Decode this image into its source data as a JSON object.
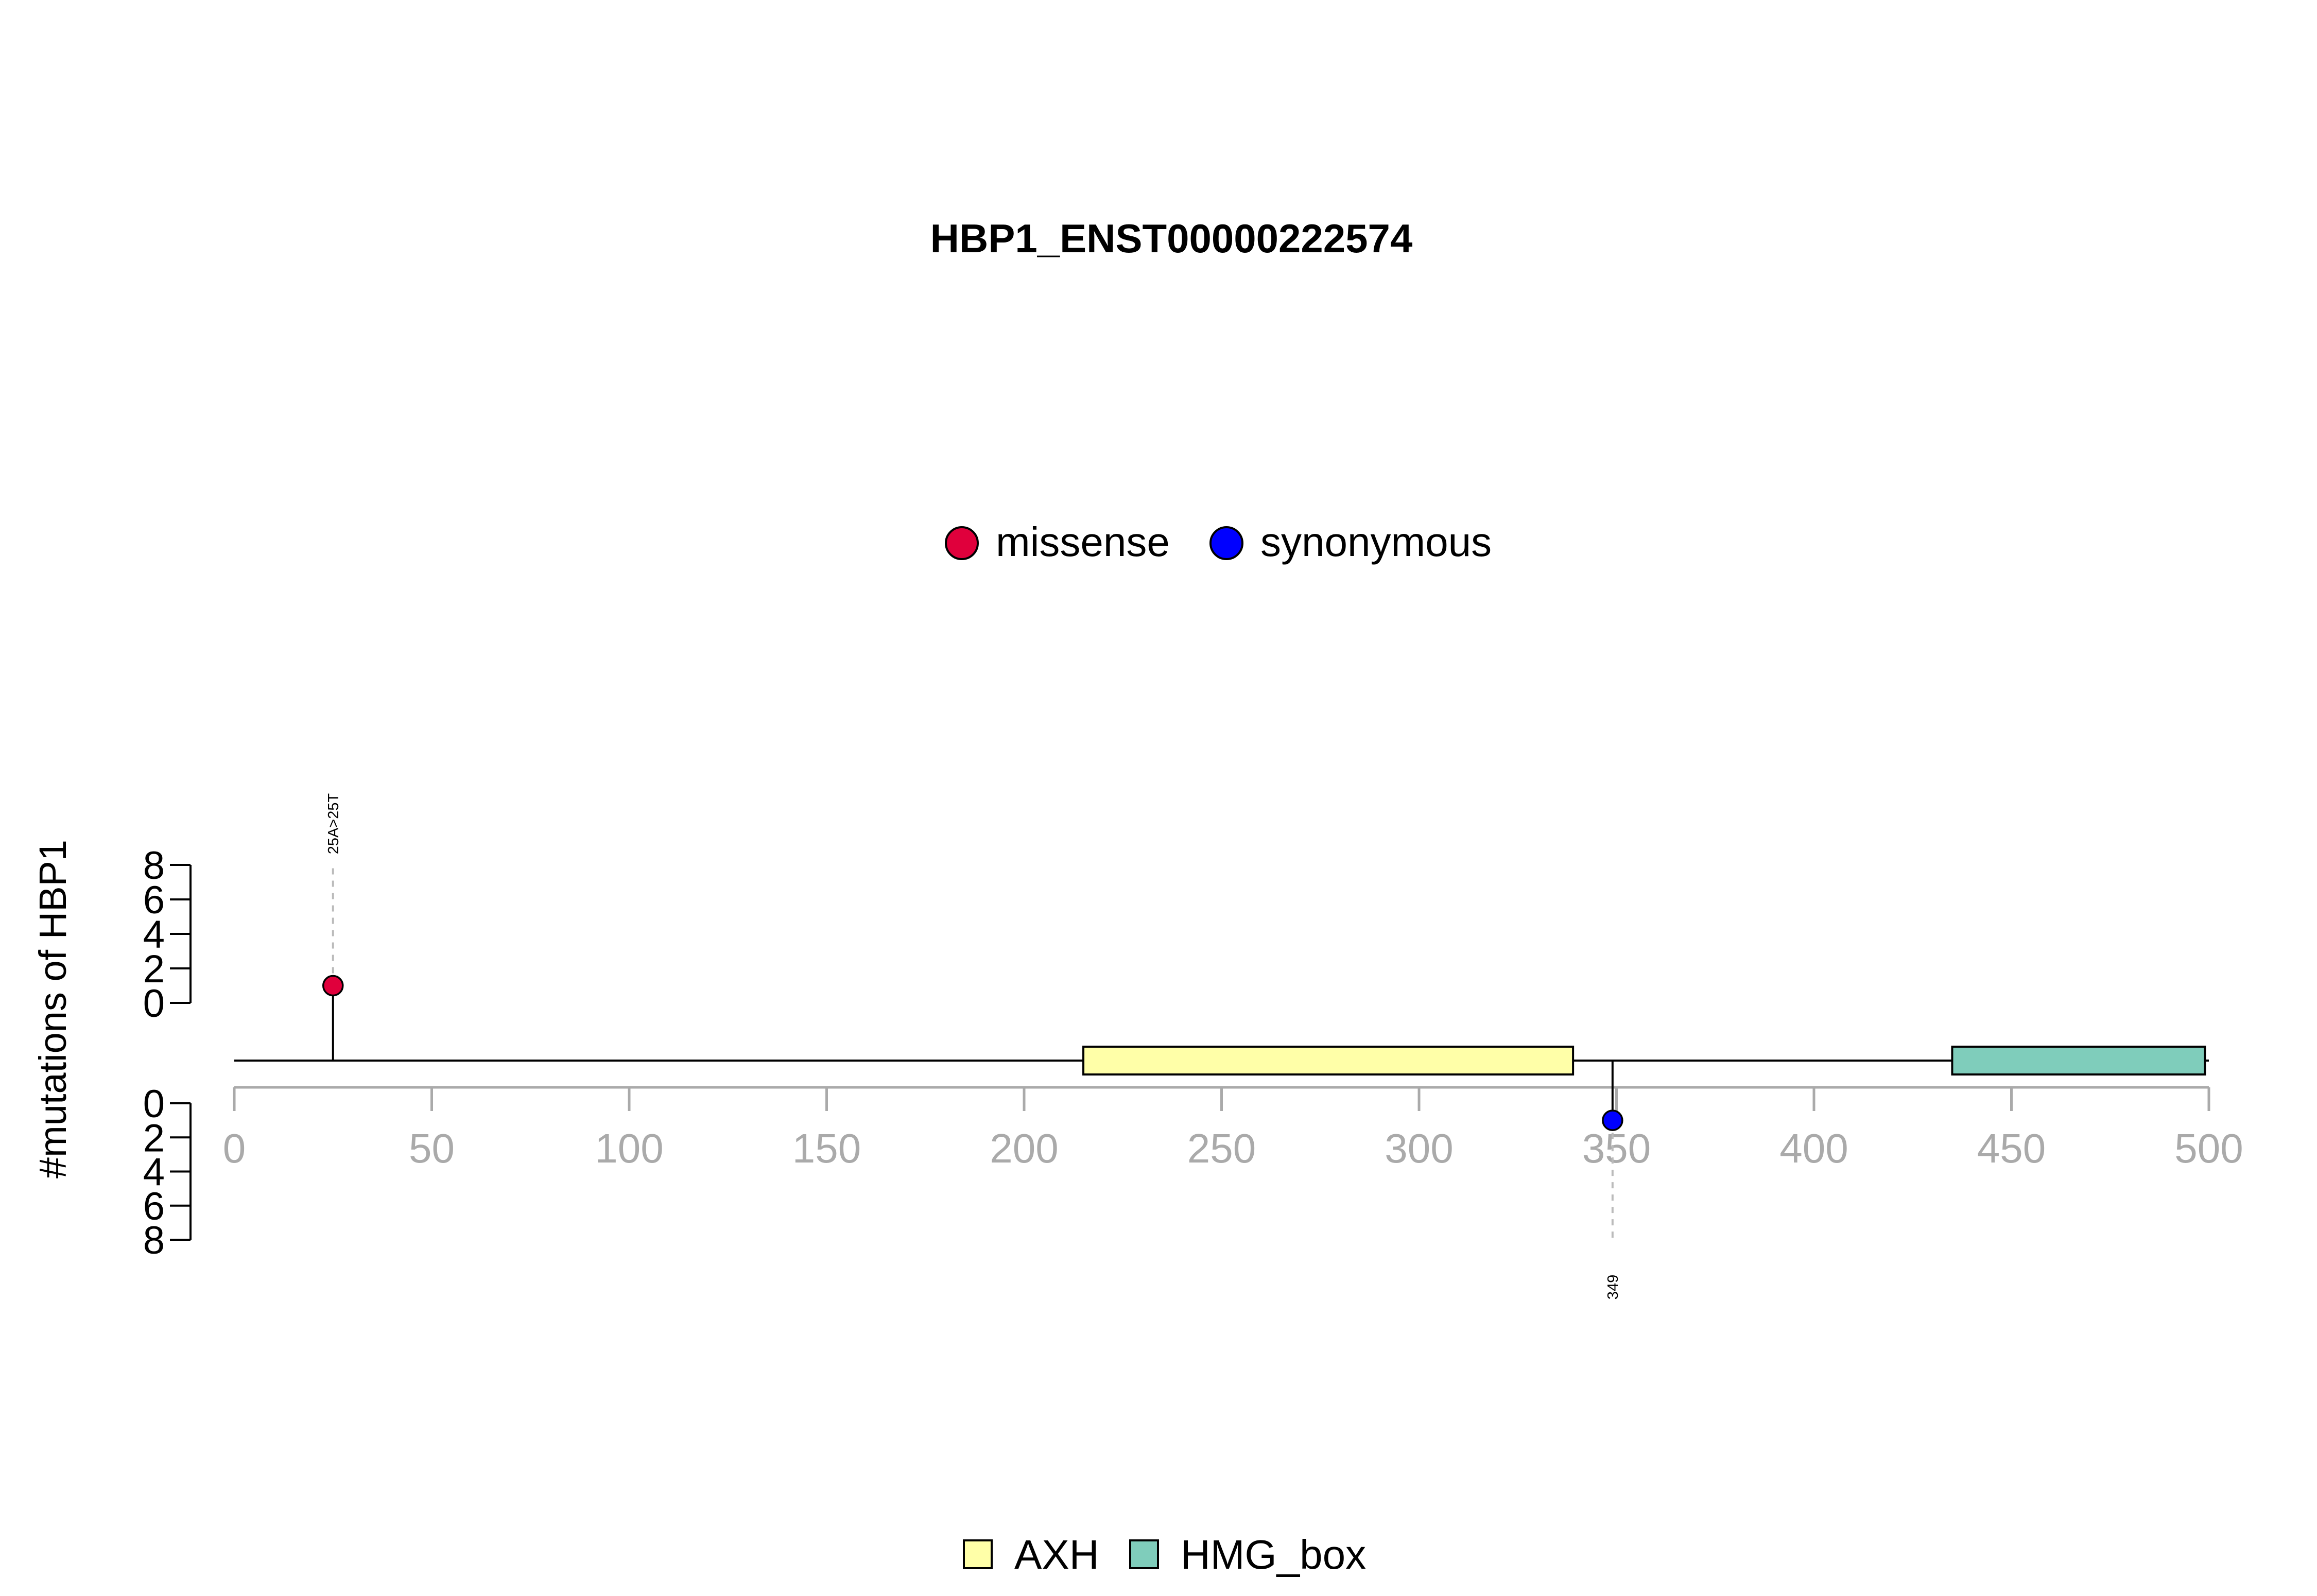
{
  "chart_data": {
    "type": "lollipop",
    "title": "HBP1_ENST00000222574",
    "ylabel": "#mutations of HBP1",
    "xlim": [
      0,
      500
    ],
    "x_ticks": [
      0,
      50,
      100,
      150,
      200,
      250,
      300,
      350,
      400,
      450,
      500
    ],
    "y_ticks": [
      0,
      2,
      4,
      6,
      8
    ],
    "ylim": [
      0,
      8
    ],
    "protein_length": 500,
    "mutation_legend": [
      {
        "label": "missense",
        "color": "#E0003C"
      },
      {
        "label": "synonymous",
        "color": "#0000FF"
      }
    ],
    "mutations": [
      {
        "position": 25,
        "count": 1,
        "type": "missense",
        "strand": "top",
        "label": "25A>25T",
        "color": "#E0003C"
      },
      {
        "position": 349,
        "count": 1,
        "type": "synonymous",
        "strand": "bottom",
        "label": "349",
        "color": "#0000FF"
      }
    ],
    "domains": [
      {
        "name": "AXH",
        "start": 215,
        "end": 339,
        "color": "#FFFFA8"
      },
      {
        "name": "HMG_box",
        "start": 435,
        "end": 499,
        "color": "#7FCDBB"
      }
    ]
  }
}
